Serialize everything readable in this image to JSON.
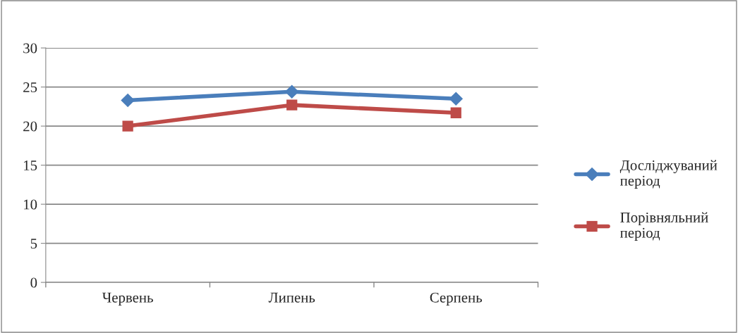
{
  "chart_data": {
    "type": "line",
    "categories": [
      "Червень",
      "Липень",
      "Серпень"
    ],
    "series": [
      {
        "name": "Досліджуваний період",
        "color": "#4a7ebb",
        "marker": "diamond",
        "values": [
          23.3,
          24.4,
          23.5
        ]
      },
      {
        "name": "Порівняльний період",
        "color": "#be4b48",
        "marker": "square",
        "values": [
          20,
          22.7,
          21.7
        ]
      }
    ],
    "ylim": [
      0,
      30
    ],
    "yticks": [
      0,
      5,
      10,
      15,
      20,
      25,
      30
    ],
    "grid": "y",
    "legend": "right",
    "line_style": "solid"
  }
}
